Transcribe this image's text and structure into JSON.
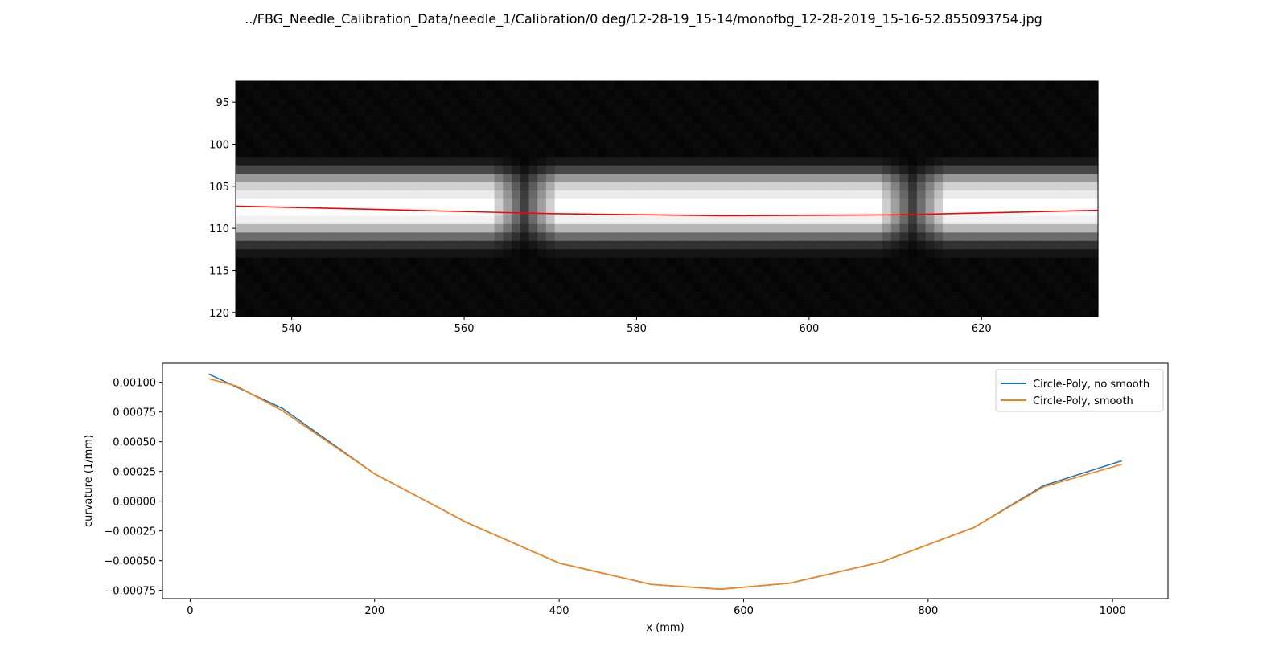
{
  "title": "../FBG_Needle_Calibration_Data/needle_1/Calibration/0 deg/12-28-19_15-14/monofbg_12-28-2019_15-16-52.855093754.jpg",
  "chart_data": [
    {
      "type": "heatmap",
      "colormap": "grayscale",
      "xlim": [
        533.5,
        633.5
      ],
      "ylim": [
        120.5,
        92.5
      ],
      "xticks": [
        540,
        560,
        580,
        600,
        620
      ],
      "yticks": [
        95,
        100,
        105,
        110,
        115,
        120
      ],
      "columns_x": [
        533.5,
        633.5
      ],
      "rows_y": [
        92.5,
        120.5
      ],
      "dark_gaps": [
        {
          "center_x": 567,
          "half_width": 3
        },
        {
          "center_x": 612,
          "half_width": 3
        }
      ],
      "band_profile": [
        {
          "row": 102,
          "intensity": 0.1
        },
        {
          "row": 103,
          "intensity": 0.28
        },
        {
          "row": 104,
          "intensity": 0.6
        },
        {
          "row": 105,
          "intensity": 0.82
        },
        {
          "row": 106,
          "intensity": 0.92
        },
        {
          "row": 107,
          "intensity": 1.0
        },
        {
          "row": 108,
          "intensity": 1.0
        },
        {
          "row": 109,
          "intensity": 0.95
        },
        {
          "row": 110,
          "intensity": 0.72
        },
        {
          "row": 111,
          "intensity": 0.42
        },
        {
          "row": 112,
          "intensity": 0.2
        },
        {
          "row": 113,
          "intensity": 0.08
        }
      ],
      "series": [
        {
          "color": "#ff0000",
          "x": [
            533.5,
            550,
            570,
            590,
            610,
            633.5
          ],
          "y": [
            107.35,
            107.75,
            108.25,
            108.5,
            108.4,
            107.85
          ]
        }
      ]
    },
    {
      "type": "line",
      "xlabel": "x (mm)",
      "ylabel": "curvature (1/mm)",
      "xlim": [
        -30,
        1060
      ],
      "ylim": [
        -0.00082,
        0.00116
      ],
      "xticks": [
        0,
        200,
        400,
        600,
        800,
        1000
      ],
      "yticks": [
        0.001,
        0.00075,
        0.0005,
        0.00025,
        0.0,
        -0.00025,
        -0.0005,
        -0.00075
      ],
      "ytick_labels": [
        "0.00100",
        "0.00075",
        "0.00050",
        "0.00025",
        "0.00000",
        "−0.00025",
        "−0.00050",
        "−0.00075"
      ],
      "legend_position": "top-right",
      "series": [
        {
          "name": "Circle-Poly, no smooth",
          "color": "#1f77b4",
          "x": [
            20,
            100,
            200,
            300,
            400,
            500,
            575,
            650,
            750,
            850,
            925,
            1010
          ],
          "y": [
            0.00107,
            0.00078,
            0.00023,
            -0.00018,
            -0.00052,
            -0.0007,
            -0.00074,
            -0.00069,
            -0.00051,
            -0.00022,
            0.00013,
            0.00034
          ]
        },
        {
          "name": "Circle-Poly, smooth",
          "color": "#ff7f0e",
          "x": [
            20,
            50,
            100,
            200,
            300,
            400,
            500,
            575,
            650,
            750,
            850,
            925,
            1010
          ],
          "y": [
            0.00103,
            0.00097,
            0.00076,
            0.00023,
            -0.00018,
            -0.00052,
            -0.0007,
            -0.00074,
            -0.00069,
            -0.00051,
            -0.00022,
            0.00012,
            0.00031
          ]
        }
      ]
    }
  ]
}
